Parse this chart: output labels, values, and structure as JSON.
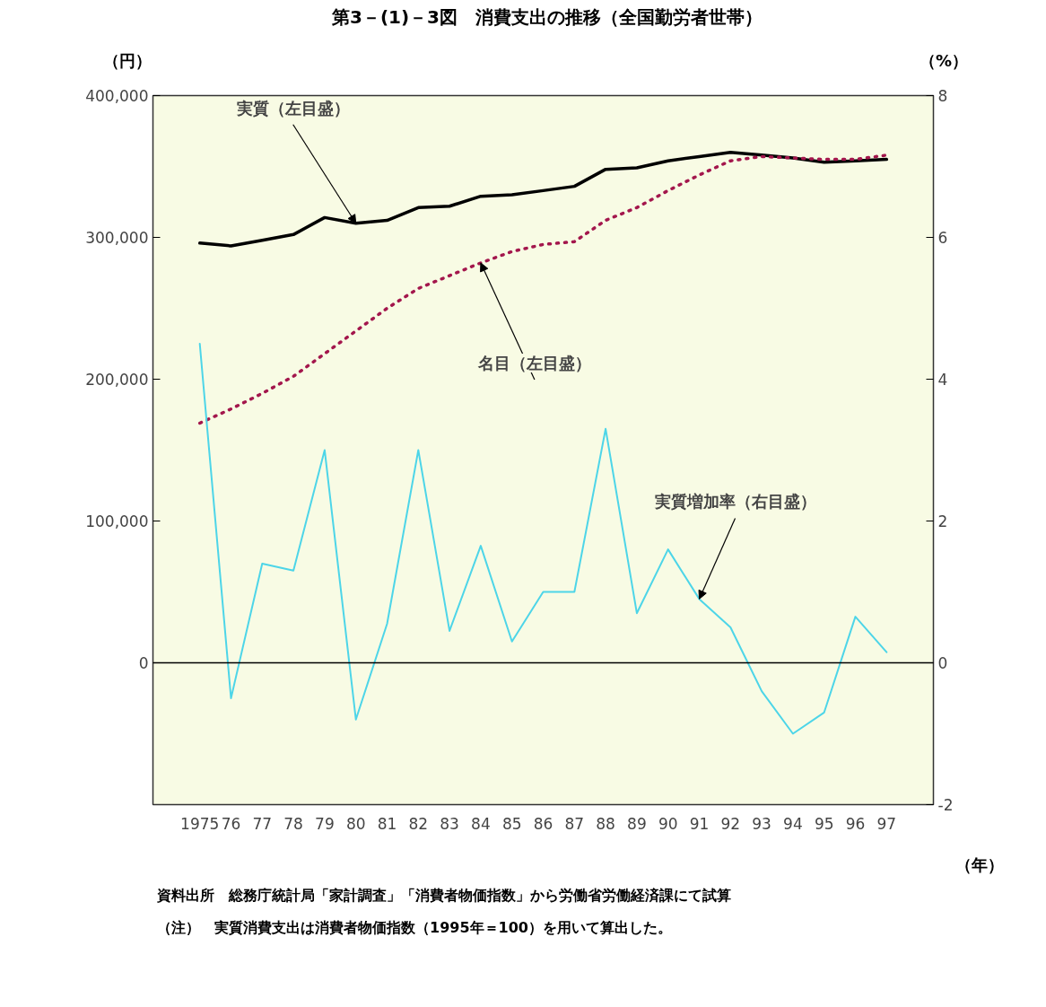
{
  "chart_data": {
    "type": "line",
    "title": "第3－(1)－3図　消費支出の推移（全国勤労者世帯）",
    "ylabel": "（円）",
    "y2label": "（%）",
    "xlabel": "（年）",
    "categories": [
      "1975",
      "76",
      "77",
      "78",
      "79",
      "80",
      "81",
      "82",
      "83",
      "84",
      "85",
      "86",
      "87",
      "88",
      "89",
      "90",
      "91",
      "92",
      "93",
      "94",
      "95",
      "96",
      "97"
    ],
    "series": [
      {
        "color": "#000000",
        "line_style": "solid",
        "values": [
          296000,
          294000,
          298000,
          302000,
          314000,
          310000,
          312000,
          321000,
          322000,
          329000,
          330000,
          333000,
          336000,
          348000,
          349000,
          354000,
          357000,
          360000,
          358000,
          356000,
          353000,
          354000,
          355000
        ]
      },
      {
        "color": "#a3164c",
        "line_style": "dotted",
        "values": [
          169000,
          179000,
          190000,
          202000,
          218000,
          234000,
          250000,
          264000,
          273000,
          282000,
          290000,
          295000,
          297000,
          312000,
          321000,
          333000,
          344000,
          354000,
          357000,
          356000,
          355000,
          355000,
          358000
        ]
      },
      {
        "color": "#4dd5e8",
        "line_style": "solid",
        "axis": "y2",
        "values": [
          4.5,
          -0.5,
          1.4,
          1.3,
          3.0,
          -0.8,
          0.55,
          3.0,
          0.45,
          1.65,
          0.3,
          1.0,
          1.0,
          3.3,
          0.7,
          1.6,
          0.9,
          0.5,
          -0.4,
          -1.0,
          -0.7,
          0.65,
          0.15
        ]
      }
    ],
    "ylim": [
      -100000,
      400000
    ],
    "yticks": [
      {
        "value": 0,
        "label": "0"
      },
      {
        "value": 100000,
        "label": "100,000"
      },
      {
        "value": 200000,
        "label": "200,000"
      },
      {
        "value": 300000,
        "label": "300,000"
      },
      {
        "value": 400000,
        "label": "400,000"
      }
    ],
    "y2lim": [
      -2,
      8
    ],
    "y2ticks": [
      -2,
      0,
      2,
      4,
      6,
      8
    ],
    "ref_lines": [
      {
        "axis": "y",
        "value": 0,
        "color": "#000000"
      }
    ],
    "grid": false,
    "marker": "none",
    "annotations": [
      {
        "text": "実質（左目盛）",
        "x": "80",
        "y": 310000
      },
      {
        "text": "名目（左目盛）",
        "x": "84",
        "y": 282000
      },
      {
        "text": "実質増加率（右目盛）",
        "x": "91",
        "y": 45000
      },
      "資料出所　総務庁統計局「家計調査」「消費者物価指数」から労働省労働経済課にて試算",
      "（注）　実質消費支出は消費者物価指数（1995年＝100）を用いて算出した。"
    ]
  }
}
